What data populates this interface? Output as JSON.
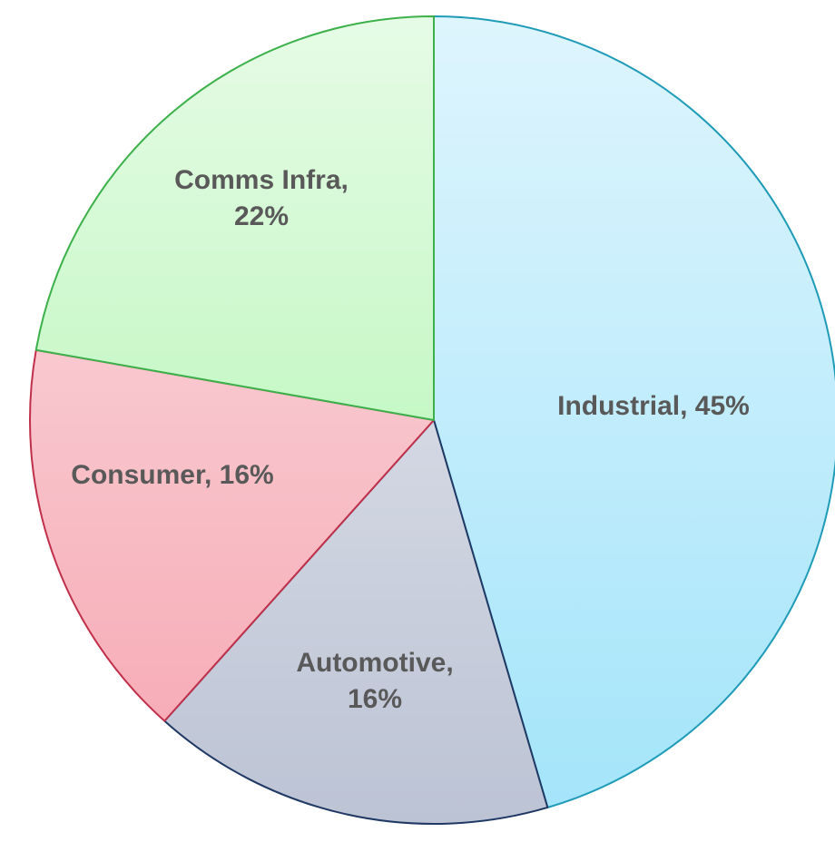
{
  "chart_data": {
    "type": "pie",
    "title": "",
    "slices": [
      {
        "label_lines": [
          "Industrial, 45%"
        ],
        "category": "Industrial",
        "value": 45,
        "color": "#a3e4fa",
        "color_light": "#def5fd",
        "stroke": "#1f9bb8"
      },
      {
        "label_lines": [
          "Automotive,",
          "16%"
        ],
        "category": "Automotive",
        "value": 16,
        "color": "#bcc3d4",
        "color_light": "#ebedf2",
        "stroke": "#1f3864"
      },
      {
        "label_lines": [
          "Consumer, 16%"
        ],
        "category": "Consumer",
        "value": 16,
        "color": "#f6a6b1",
        "color_light": "#fbe0e4",
        "stroke": "#c0304a"
      },
      {
        "label_lines": [
          "Comms Infra,",
          "22%"
        ],
        "category": "Comms Infra",
        "value": 22,
        "color": "#a6f4a6",
        "color_light": "#e6fbe6",
        "stroke": "#3cb04a"
      }
    ],
    "start_angle_deg": 0,
    "direction": "clockwise"
  }
}
